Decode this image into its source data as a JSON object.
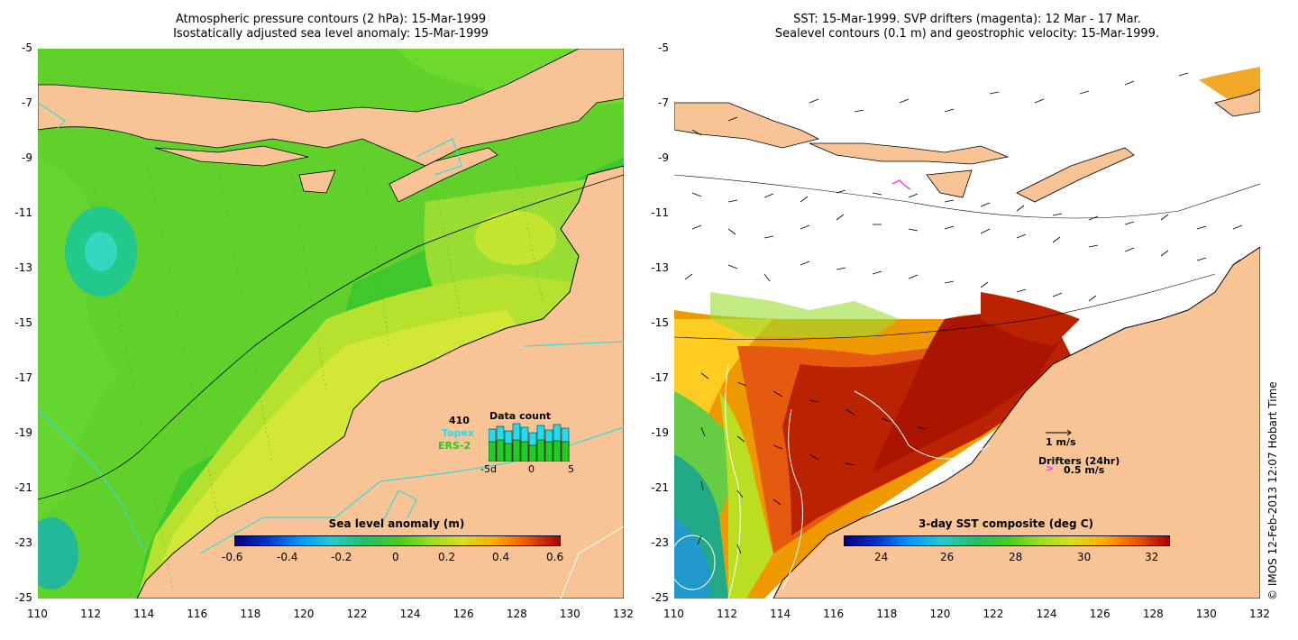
{
  "left_panel": {
    "title_line1": "Atmospheric pressure contours (2 hPa): 15-Mar-1999",
    "title_line2": "Isostatically adjusted sea level anomaly: 15-Mar-1999",
    "colorbar_title": "Sea level anomaly (m)",
    "colorbar_ticks": [
      "-0.6",
      "-0.4",
      "-0.2",
      "0",
      "0.2",
      "0.4",
      "0.6"
    ],
    "inset": {
      "count": "410",
      "topex_label": "Topex",
      "ers_label": "ERS-2",
      "title": "Data count",
      "axis_labels": [
        "-5d",
        "0",
        "5"
      ],
      "topex_color": "#22ddee",
      "ers_color": "#22cc22"
    }
  },
  "right_panel": {
    "title_line1": "SST: 15-Mar-1999. SVP drifters (magenta): 12 Mar - 17 Mar.",
    "title_line2": "Sealevel contours (0.1 m) and geostrophic velocity: 15-Mar-1999.",
    "colorbar_title": "3-day SST composite (deg C)",
    "colorbar_ticks": [
      "24",
      "26",
      "28",
      "30",
      "32"
    ],
    "velocity_label": "1 m/s",
    "drifters_label": "Drifters (24hr)",
    "drifter_speed_label": "0.5 m/s",
    "drifter_color": "#ff33ff"
  },
  "axes": {
    "x_ticks": [
      "110",
      "112",
      "114",
      "116",
      "118",
      "120",
      "122",
      "124",
      "126",
      "128",
      "130",
      "132"
    ],
    "y_ticks": [
      "-5",
      "-7",
      "-9",
      "-11",
      "-13",
      "-15",
      "-17",
      "-19",
      "-21",
      "-23",
      "-25"
    ]
  },
  "credit": "© IMOS 12-Feb-2013 12:07 Hobart Time",
  "colors": {
    "land": "#f9c495",
    "ocean_green": "#44cc22",
    "sst_red": "#b01a00"
  }
}
